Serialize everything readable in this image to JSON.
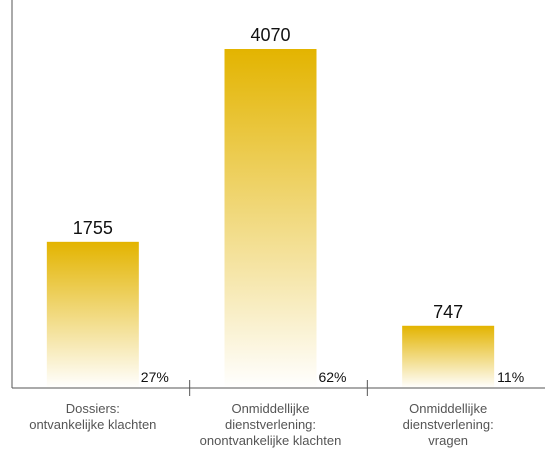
{
  "chart_data": {
    "type": "bar",
    "categories": [
      [
        "Dossiers:",
        "ontvankelijke klachten"
      ],
      [
        "Onmiddellijke",
        "dienstverlening:",
        "onontvankelijke klachten"
      ],
      [
        "Onmiddellijke",
        "dienstverlening:",
        "vragen"
      ]
    ],
    "values": [
      1755,
      4070,
      747
    ],
    "value_labels": [
      "1755",
      "4070",
      "747"
    ],
    "percent_labels": [
      "27%",
      "62%",
      "11%"
    ],
    "title": "",
    "xlabel": "",
    "ylabel": "",
    "ylim": [
      0,
      4070
    ],
    "grid": false,
    "legend": "none",
    "colors": {
      "bar_top": "#e3b400",
      "bar_bottom": "#ffffff",
      "axis": "#555555",
      "text": "#111111",
      "category_text": "#555555"
    }
  }
}
